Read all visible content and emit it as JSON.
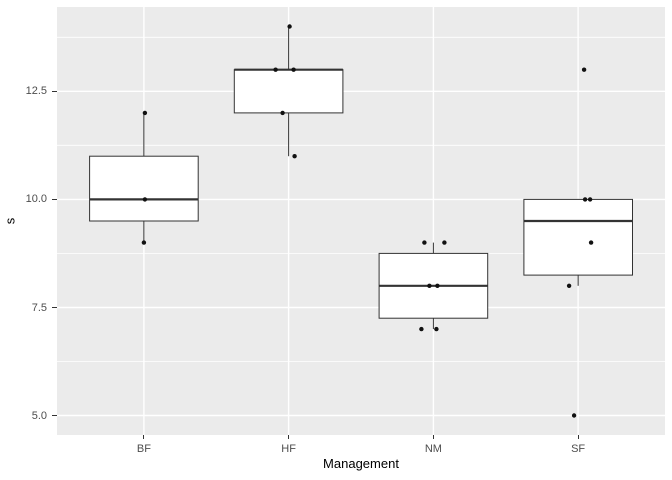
{
  "chart_data": {
    "type": "boxplot",
    "title": "",
    "xlabel": "Management",
    "ylabel": "s",
    "categories": [
      "BF",
      "HF",
      "NM",
      "SF"
    ],
    "ylim": [
      4.55,
      14.45
    ],
    "y_ticks": [
      {
        "value": 5.0,
        "label": "5.0"
      },
      {
        "value": 7.5,
        "label": "7.5"
      },
      {
        "value": 10.0,
        "label": "10.0"
      },
      {
        "value": 12.5,
        "label": "12.5"
      }
    ],
    "y_minor_gridlines": [
      6.25,
      8.75,
      11.25,
      13.75
    ],
    "grid": "horizontal major+minor, vertical major at categories",
    "legend": "none",
    "series": [
      {
        "name": "BF",
        "q1": 9.5,
        "median": 10,
        "q3": 11,
        "whisker_low": 9,
        "whisker_high": 12,
        "outliers": [],
        "points": [
          {
            "v": 12,
            "dx": 1
          },
          {
            "v": 10,
            "dx": 1
          },
          {
            "v": 9,
            "dx": 0
          }
        ]
      },
      {
        "name": "HF",
        "q1": 12,
        "median": 13,
        "q3": 13,
        "whisker_low": 11,
        "whisker_high": 14,
        "outliers": [],
        "points": [
          {
            "v": 14,
            "dx": 1
          },
          {
            "v": 13,
            "dx": -13
          },
          {
            "v": 13,
            "dx": 5
          },
          {
            "v": 12,
            "dx": -6
          },
          {
            "v": 11,
            "dx": 6
          }
        ]
      },
      {
        "name": "NM",
        "q1": 7.25,
        "median": 8,
        "q3": 8.75,
        "whisker_low": 7,
        "whisker_high": 9,
        "outliers": [],
        "points": [
          {
            "v": 9,
            "dx": -9
          },
          {
            "v": 9,
            "dx": 11
          },
          {
            "v": 8,
            "dx": -4
          },
          {
            "v": 8,
            "dx": 4
          },
          {
            "v": 7,
            "dx": -12
          },
          {
            "v": 7,
            "dx": 3
          }
        ]
      },
      {
        "name": "SF",
        "q1": 8.25,
        "median": 9.5,
        "q3": 10,
        "whisker_low": 8,
        "whisker_high": 10,
        "outliers": [
          13,
          5
        ],
        "points": [
          {
            "v": 13,
            "dx": 6
          },
          {
            "v": 10,
            "dx": 7
          },
          {
            "v": 10,
            "dx": 12
          },
          {
            "v": 9,
            "dx": 13
          },
          {
            "v": 8,
            "dx": -9
          },
          {
            "v": 5,
            "dx": -4
          }
        ]
      }
    ],
    "colors": {
      "background": "#FFFFFF",
      "panel_bg": "#EBEBEB",
      "grid": "#FFFFFF",
      "box_fill": "#FFFFFF",
      "box_stroke": "#333333",
      "point": "#111111",
      "tick_mark": "#333333",
      "tick_label": "#4D4D4D",
      "axis_title": "#000000"
    }
  }
}
